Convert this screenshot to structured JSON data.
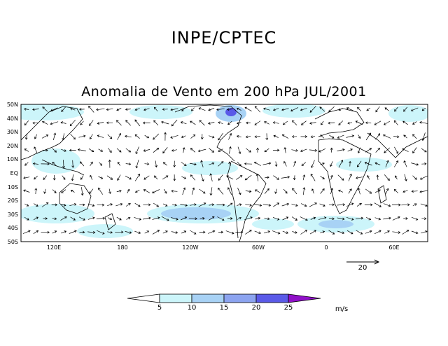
{
  "header": {
    "org_title": "INPE/CPTEC",
    "map_title": "Anomalia de Vento em 200 hPa JUL/2001"
  },
  "axes": {
    "lat_labels": [
      "50N",
      "40N",
      "30N",
      "20N",
      "10N",
      "EQ",
      "10S",
      "20S",
      "30S",
      "40S",
      "50S"
    ],
    "lon_labels": [
      "120E",
      "180",
      "120W",
      "60W",
      "0",
      "60E"
    ]
  },
  "reference_vector": {
    "value": "20"
  },
  "colorbar": {
    "ticks": [
      "5",
      "10",
      "15",
      "20",
      "25"
    ],
    "units": "m/s",
    "colors": [
      "#ffffff",
      "#ccf5fa",
      "#a8d2f5",
      "#8ca4f0",
      "#5a5ae8",
      "#9010c8"
    ]
  },
  "colors": {
    "land_outline": "#000000",
    "arrow": "#000000"
  }
}
